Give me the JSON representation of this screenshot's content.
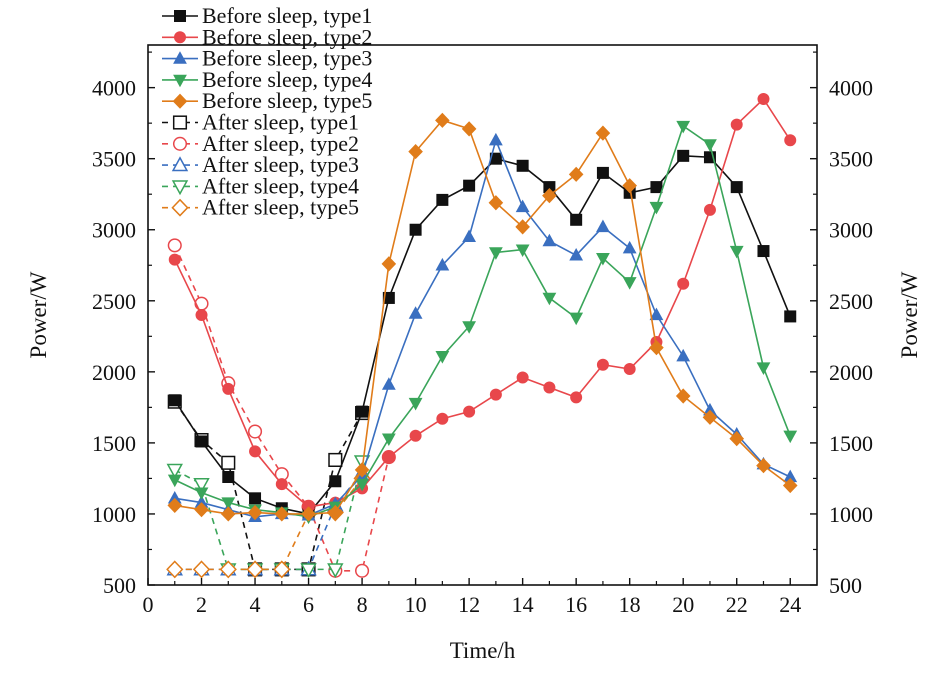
{
  "chart_data": {
    "type": "line",
    "title": "",
    "xlabel": "Time/h",
    "ylabel": "Power/W",
    "ylabel_right": "Power/W",
    "xlim": [
      0,
      25
    ],
    "ylim": [
      500,
      4300
    ],
    "xticks": [
      0,
      2,
      4,
      6,
      8,
      10,
      12,
      14,
      16,
      18,
      20,
      22,
      24
    ],
    "yticks": [
      500,
      1000,
      1500,
      2000,
      2500,
      3000,
      3500,
      4000
    ],
    "grid": false,
    "legend_position": "top-left",
    "series": [
      {
        "name": "Before sleep, type1",
        "color": "#111111",
        "marker": "square",
        "filled": true,
        "dashed": false,
        "x": [
          1,
          2,
          3,
          4,
          5,
          6,
          7,
          8,
          9,
          10,
          11,
          12,
          13,
          14,
          15,
          16,
          17,
          18,
          19,
          20,
          21,
          22,
          23,
          24
        ],
        "values": [
          1800,
          1510,
          1260,
          1110,
          1040,
          1000,
          1230,
          1720,
          2520,
          3000,
          3210,
          3310,
          3500,
          3450,
          3300,
          3070,
          3400,
          3260,
          3300,
          3520,
          3510,
          3300,
          2850,
          2390
        ]
      },
      {
        "name": "Before sleep, type2",
        "color": "#e8474b",
        "marker": "circle",
        "filled": true,
        "dashed": false,
        "x": [
          1,
          2,
          3,
          4,
          5,
          6,
          7,
          8,
          9,
          10,
          11,
          12,
          13,
          14,
          15,
          16,
          17,
          18,
          19,
          20,
          21,
          22,
          23,
          24
        ],
        "values": [
          2790,
          2400,
          1880,
          1440,
          1210,
          1050,
          1080,
          1180,
          1400,
          1550,
          1670,
          1720,
          1840,
          1960,
          1890,
          1820,
          2050,
          2020,
          2210,
          2620,
          3140,
          3740,
          3920,
          3630
        ]
      },
      {
        "name": "Before sleep, type3",
        "color": "#3a6fc0",
        "marker": "triangle-up",
        "filled": true,
        "dashed": false,
        "x": [
          1,
          2,
          3,
          4,
          5,
          6,
          7,
          8,
          9,
          10,
          11,
          12,
          13,
          14,
          15,
          16,
          17,
          18,
          19,
          20,
          21,
          22,
          23,
          24
        ],
        "values": [
          1110,
          1080,
          1030,
          980,
          1000,
          990,
          1070,
          1270,
          1910,
          2410,
          2750,
          2950,
          3630,
          3160,
          2920,
          2820,
          3020,
          2870,
          2400,
          2110,
          1730,
          1560,
          1350,
          1260
        ]
      },
      {
        "name": "Before sleep, type4",
        "color": "#3aa55a",
        "marker": "triangle-down",
        "filled": true,
        "dashed": false,
        "x": [
          1,
          2,
          3,
          4,
          5,
          6,
          7,
          8,
          9,
          10,
          11,
          12,
          13,
          14,
          15,
          16,
          17,
          18,
          19,
          20,
          21,
          22,
          23,
          24
        ],
        "values": [
          1240,
          1150,
          1080,
          1030,
          1010,
          980,
          1050,
          1210,
          1530,
          1780,
          2110,
          2320,
          2840,
          2860,
          2520,
          2380,
          2800,
          2630,
          3160,
          3730,
          3600,
          2850,
          2030,
          1550
        ]
      },
      {
        "name": "Before sleep, type5",
        "color": "#e07c1a",
        "marker": "diamond",
        "filled": true,
        "dashed": false,
        "x": [
          1,
          2,
          3,
          4,
          5,
          6,
          7,
          8,
          9,
          10,
          11,
          12,
          13,
          14,
          15,
          16,
          17,
          18,
          19,
          20,
          21,
          22,
          23,
          24
        ],
        "values": [
          1060,
          1030,
          1000,
          1010,
          1000,
          1000,
          1010,
          1310,
          2760,
          3550,
          3770,
          3710,
          3190,
          3020,
          3240,
          3390,
          3680,
          3310,
          2170,
          1830,
          1680,
          1530,
          1340,
          1200
        ]
      },
      {
        "name": "After sleep, type1",
        "color": "#111111",
        "marker": "square",
        "filled": false,
        "dashed": true,
        "x": [
          1,
          2,
          3,
          4,
          5,
          6,
          7,
          8
        ],
        "values": [
          1790,
          1520,
          1360,
          610,
          610,
          610,
          1380,
          1710
        ]
      },
      {
        "name": "After sleep, type2",
        "color": "#e8474b",
        "marker": "circle",
        "filled": false,
        "dashed": true,
        "x": [
          1,
          2,
          3,
          4,
          5,
          6,
          7,
          8,
          9
        ],
        "values": [
          2890,
          2480,
          1920,
          1580,
          1280,
          1050,
          600,
          600,
          1400
        ]
      },
      {
        "name": "After sleep, type3",
        "color": "#3a6fc0",
        "marker": "triangle-up",
        "filled": false,
        "dashed": true,
        "x": [
          1,
          2,
          3,
          4,
          5,
          6,
          7,
          8
        ],
        "values": [
          610,
          610,
          610,
          610,
          610,
          610,
          1060,
          1290
        ]
      },
      {
        "name": "After sleep, type4",
        "color": "#3aa55a",
        "marker": "triangle-down",
        "filled": false,
        "dashed": true,
        "x": [
          1,
          2,
          3,
          4,
          5,
          6,
          7,
          8
        ],
        "values": [
          1310,
          1210,
          610,
          610,
          610,
          610,
          610,
          1370
        ]
      },
      {
        "name": "After sleep, type5",
        "color": "#e07c1a",
        "marker": "diamond",
        "filled": false,
        "dashed": true,
        "x": [
          1,
          2,
          3,
          4,
          5,
          6,
          7,
          8
        ],
        "values": [
          610,
          610,
          610,
          610,
          610,
          1000,
          1010,
          1250
        ]
      }
    ]
  }
}
